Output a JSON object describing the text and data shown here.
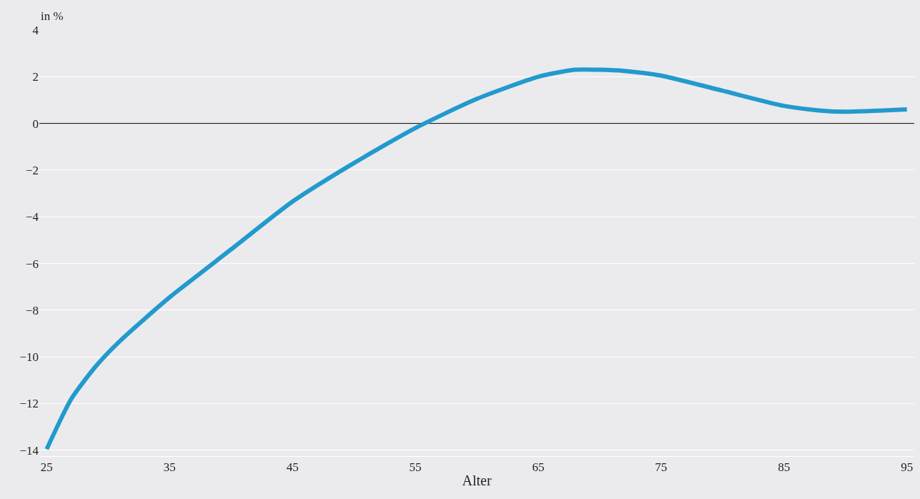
{
  "chart_data": {
    "type": "line",
    "xlabel": "Alter",
    "ylabel": "in %",
    "x": [
      25,
      27,
      29,
      31,
      35,
      40,
      45,
      50,
      55,
      60,
      65,
      68,
      70,
      72,
      75,
      80,
      85,
      88,
      90,
      95
    ],
    "series": [
      {
        "color": "#229acd",
        "values": [
          -13.95,
          -11.8,
          -10.4,
          -9.3,
          -7.45,
          -5.4,
          -3.35,
          -1.7,
          -0.2,
          1.05,
          2.0,
          2.3,
          2.3,
          2.25,
          2.05,
          1.4,
          0.75,
          0.55,
          0.5,
          0.6
        ]
      }
    ],
    "xlim": [
      24.4,
      95.6
    ],
    "xticks": [
      25,
      35,
      45,
      55,
      65,
      75,
      85,
      95
    ],
    "ylim": [
      -14.25,
      4
    ],
    "yticks": [
      4,
      2,
      0,
      -2,
      -4,
      -6,
      -8,
      -10,
      -12,
      -14
    ],
    "grid": "y",
    "marker": "none",
    "line_style": "solid",
    "ref_lines": [
      {
        "axis": "y",
        "value": 0,
        "color": "#000000"
      }
    ]
  }
}
